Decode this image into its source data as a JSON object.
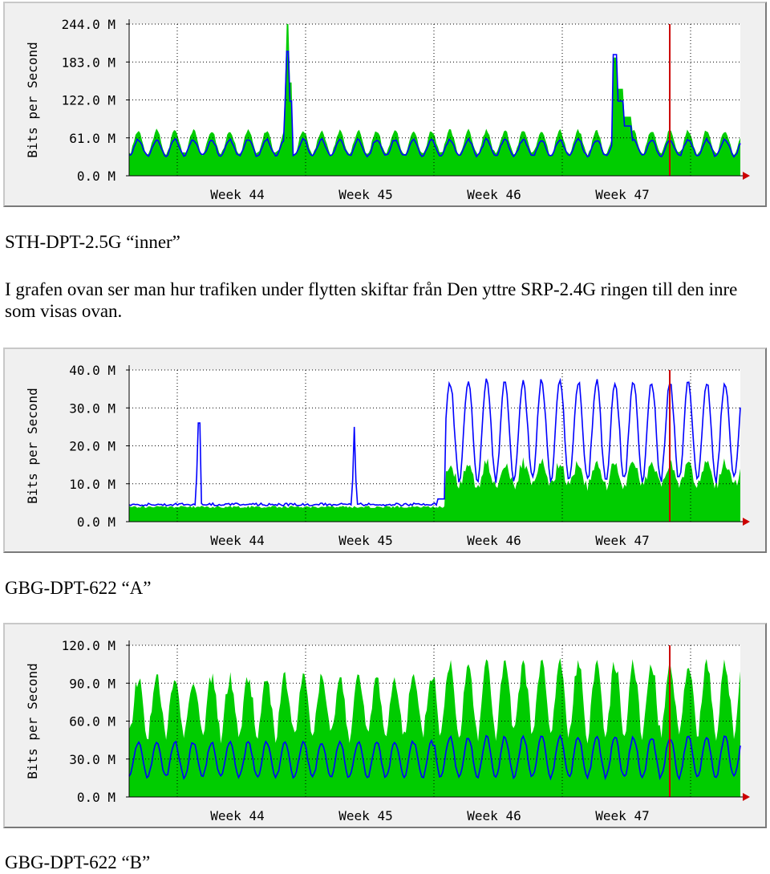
{
  "charts": [
    {
      "id": "chart1",
      "type": "area",
      "ylabel": "Bits per Second",
      "ytick_labels": [
        "244.0 M",
        "183.0 M",
        "122.0 M",
        "61.0 M",
        "0.0 M"
      ],
      "ytick_values": [
        244,
        183,
        122,
        61,
        0
      ],
      "ylim": [
        0,
        244
      ],
      "xtick_labels": [
        "Week 44",
        "Week 45",
        "Week 46",
        "Week 47"
      ],
      "colors": {
        "in": "#00cc00",
        "out": "#0000ff",
        "now": "#cc0000",
        "bg": "#ffffff"
      },
      "grid": true
    },
    {
      "id": "chart2",
      "type": "area",
      "ylabel": "Bits per Second",
      "ytick_labels": [
        "40.0 M",
        "30.0 M",
        "20.0 M",
        "10.0 M",
        "0.0 M"
      ],
      "ytick_values": [
        40,
        30,
        20,
        10,
        0
      ],
      "ylim": [
        0,
        40
      ],
      "xtick_labels": [
        "Week 44",
        "Week 45",
        "Week 46",
        "Week 47"
      ],
      "colors": {
        "in": "#00cc00",
        "out": "#0000ff",
        "now": "#cc0000",
        "bg": "#ffffff"
      },
      "grid": true
    },
    {
      "id": "chart3",
      "type": "area",
      "ylabel": "Bits per Second",
      "ytick_labels": [
        "120.0 M",
        "90.0 M",
        "60.0 M",
        "30.0 M",
        "0.0 M"
      ],
      "ytick_values": [
        120,
        90,
        60,
        30,
        0
      ],
      "ylim": [
        0,
        120
      ],
      "xtick_labels": [
        "Week 44",
        "Week 45",
        "Week 46",
        "Week 47"
      ],
      "colors": {
        "in": "#00cc00",
        "out": "#0000ff",
        "now": "#cc0000",
        "bg": "#ffffff"
      },
      "grid": true
    }
  ],
  "chart_data": [
    {
      "type": "area",
      "title": "",
      "ylabel": "Bits per Second",
      "ylim": [
        0,
        244
      ],
      "categories": [
        "Week 44",
        "Week 45",
        "Week 46",
        "Week 47"
      ],
      "series": [
        {
          "values_approx_daily_peak": [
            75,
            75,
            75,
            244,
            75,
            70,
            70,
            70,
            70,
            70,
            65,
            65,
            65,
            65,
            65,
            70,
            70,
            70,
            190,
            75,
            70,
            70,
            70
          ]
        },
        {
          "values_approx_daily_peak": [
            55,
            55,
            55,
            200,
            55,
            55,
            55,
            55,
            55,
            55,
            55,
            55,
            55,
            55,
            55,
            55,
            55,
            55,
            195,
            55,
            55,
            55,
            55
          ]
        }
      ]
    },
    {
      "type": "area",
      "title": "",
      "ylabel": "Bits per Second",
      "ylim": [
        0,
        40
      ],
      "categories": [
        "Week 44",
        "Week 45",
        "Week 46",
        "Week 47"
      ],
      "series": [
        {
          "values_approx_level_before_switch": 4,
          "values_approx_level_after_switch": 13
        },
        {
          "values_approx_level_before_switch": 4.5,
          "values_approx_daily_peak_after_switch": 36,
          "spikes": [
            26,
            25
          ]
        }
      ]
    },
    {
      "type": "area",
      "title": "",
      "ylabel": "Bits per Second",
      "ylim": [
        0,
        120
      ],
      "categories": [
        "Week 44",
        "Week 45",
        "Week 46",
        "Week 47"
      ],
      "series": [
        {
          "values_approx_daily_peak": [
            80,
            90,
            92,
            95,
            98,
            92,
            95,
            90,
            100,
            112,
            110,
            112,
            110,
            108,
            105,
            108,
            106,
            100,
            105,
            102,
            100,
            98,
            100
          ]
        },
        {
          "values_approx_daily_peak": [
            40,
            45,
            45,
            45,
            45,
            45,
            45,
            45,
            50,
            55,
            55,
            55,
            50,
            50,
            50,
            50,
            48,
            45,
            45,
            45,
            45,
            45,
            45
          ]
        }
      ]
    }
  ],
  "captions": {
    "c1": "STH-DPT-2.5G “inner”",
    "para": "I grafen ovan ser man hur trafiken under flytten skiftar från Den yttre SRP-2.4G ringen till den inre som visas ovan.",
    "c2": "GBG-DPT-622 “A”",
    "c3": "GBG-DPT-622 “B”"
  }
}
